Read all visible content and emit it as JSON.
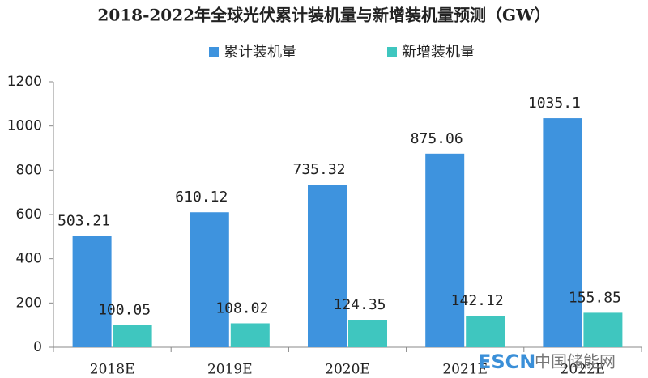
{
  "chart_data": {
    "type": "bar",
    "title": "2018-2022年全球光伏累计装机量与新增装机量预测（GW）",
    "categories": [
      "2018E",
      "2019E",
      "2020E",
      "2021E",
      "2022E"
    ],
    "series": [
      {
        "name": "累计装机量",
        "color": "#3e93de",
        "values": [
          503.21,
          610.12,
          735.32,
          875.06,
          1035.1
        ]
      },
      {
        "name": "新增装机量",
        "color": "#3fc6bf",
        "values": [
          100.05,
          108.02,
          124.35,
          142.12,
          155.85
        ]
      }
    ],
    "ylim": [
      0,
      1200
    ],
    "yticks": [
      0,
      200,
      400,
      600,
      800,
      1000,
      1200
    ],
    "grid": false,
    "legend": "top"
  },
  "watermark": [
    "ESCN",
    "中国储能网"
  ]
}
